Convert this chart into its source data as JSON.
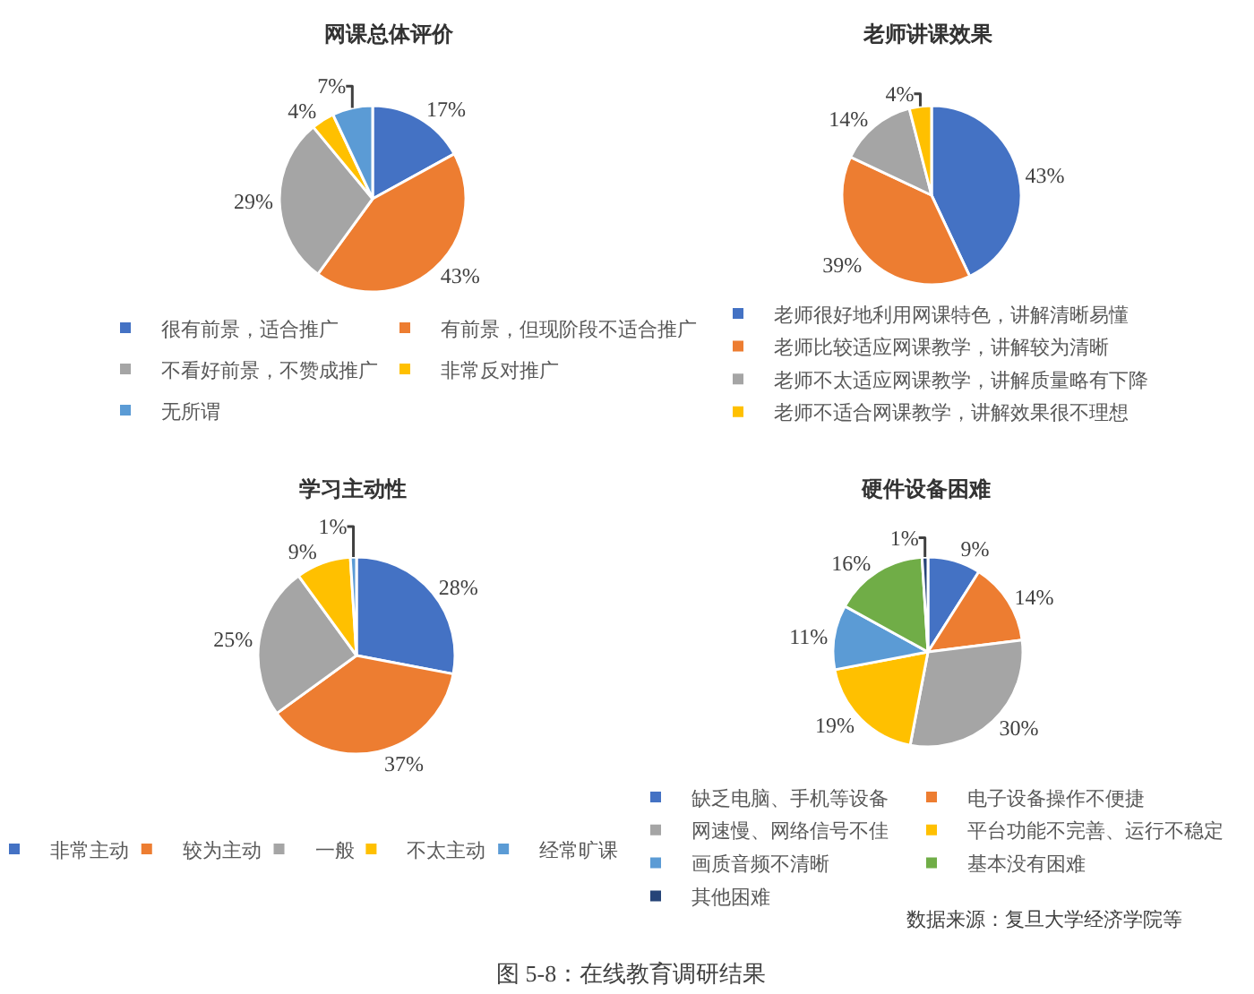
{
  "chart_data": [
    {
      "type": "pie",
      "title": "网课总体评价",
      "categories": [
        "很有前景，适合推广",
        "有前景，但现阶段不适合推广",
        "不看好前景，不赞成推广",
        "非常反对推广",
        "无所谓"
      ],
      "values": [
        17,
        43,
        29,
        4,
        7
      ],
      "colors": [
        "#4472c4",
        "#ed7d31",
        "#a5a5a5",
        "#ffc000",
        "#5b9bd5"
      ],
      "value_labels": [
        "17%",
        "43%",
        "29%",
        "4%",
        "7%"
      ],
      "legend": "bottom"
    },
    {
      "type": "pie",
      "title": "老师讲课效果",
      "categories": [
        "老师很好地利用网课特色，讲解清晰易懂",
        "老师比较适应网课教学，讲解较为清晰",
        "老师不太适应网课教学，讲解质量略有下降",
        "老师不适合网课教学，讲解效果很不理想"
      ],
      "values": [
        43,
        39,
        14,
        4
      ],
      "colors": [
        "#4472c4",
        "#ed7d31",
        "#a5a5a5",
        "#ffc000"
      ],
      "value_labels": [
        "43%",
        "39%",
        "14%",
        "4%"
      ],
      "legend": "bottom"
    },
    {
      "type": "pie",
      "title": "学习主动性",
      "categories": [
        "非常主动",
        "较为主动",
        "一般",
        "不太主动",
        "经常旷课"
      ],
      "values": [
        28,
        37,
        25,
        9,
        1
      ],
      "colors": [
        "#4472c4",
        "#ed7d31",
        "#a5a5a5",
        "#ffc000",
        "#5b9bd5"
      ],
      "value_labels": [
        "28%",
        "37%",
        "25%",
        "9%",
        "1%"
      ],
      "legend": "bottom"
    },
    {
      "type": "pie",
      "title": "硬件设备困难",
      "categories": [
        "缺乏电脑、手机等设备",
        "电子设备操作不便捷",
        "网速慢、网络信号不佳",
        "平台功能不完善、运行不稳定",
        "画质音频不清晰",
        "基本没有困难",
        "其他困难"
      ],
      "values": [
        9,
        14,
        30,
        19,
        11,
        16,
        1
      ],
      "colors": [
        "#4472c4",
        "#ed7d31",
        "#a5a5a5",
        "#ffc000",
        "#5b9bd5",
        "#70ad47",
        "#264478"
      ],
      "value_labels": [
        "9%",
        "14%",
        "30%",
        "19%",
        "11%",
        "16%",
        "1%"
      ],
      "legend": "bottom",
      "annotations": [
        "数据来源：复旦大学经济学院等",
        "图 5-8：在线教育调研结果"
      ]
    }
  ]
}
